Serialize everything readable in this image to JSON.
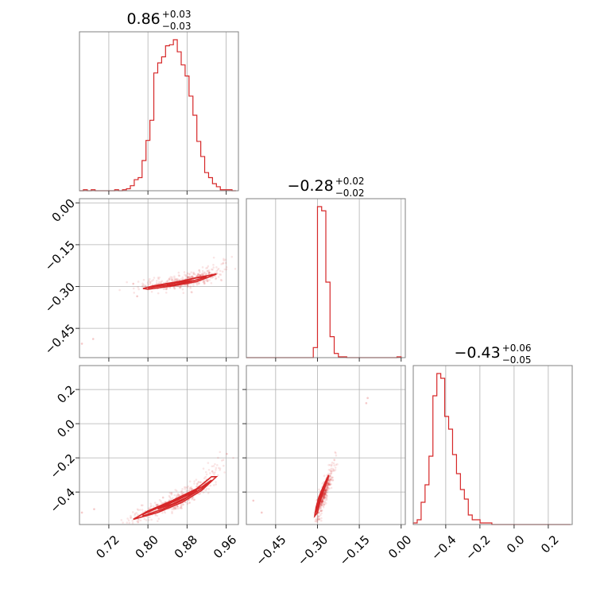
{
  "chart_data": {
    "type": "corner",
    "color": "#d62728",
    "frame_color": "#808080",
    "grid_color": "#b0b0b0",
    "grid": true,
    "parameters": [
      {
        "index": 0,
        "median": "0.86",
        "plus": "+0.03",
        "minus": "−0.03",
        "range": [
          0.66,
          0.985
        ],
        "ticks": [
          0.72,
          0.8,
          0.88,
          0.96
        ],
        "tick_labels": [
          "0.72",
          "0.80",
          "0.88",
          "0.96"
        ]
      },
      {
        "index": 1,
        "median": "−0.28",
        "plus": "+0.02",
        "minus": "−0.02",
        "range": [
          -0.555,
          0.015
        ],
        "ticks": [
          -0.45,
          -0.3,
          -0.15,
          0.0
        ],
        "tick_labels": [
          "−0.45",
          "−0.30",
          "−0.15",
          "0.00"
        ]
      },
      {
        "index": 2,
        "median": "−0.43",
        "plus": "+0.06",
        "minus": "−0.05",
        "range": [
          -0.59,
          0.34
        ],
        "ticks": [
          -0.4,
          -0.2,
          0.0,
          0.2
        ],
        "tick_labels": [
          "−0.4",
          "−0.2",
          "0.0",
          "0.2"
        ]
      }
    ],
    "y_tick_labels_row1": [
      "0.00",
      "−0.15",
      "−0.30",
      "−0.45"
    ],
    "y_tick_labels_row2": [
      "0.2",
      "0.0",
      "−0.2",
      "−0.4"
    ],
    "histograms": [
      {
        "param": 0,
        "bins": [
          0.66,
          0.668,
          0.676,
          0.684,
          0.692,
          0.7,
          0.708,
          0.716,
          0.724,
          0.732,
          0.74,
          0.748,
          0.756,
          0.764,
          0.772,
          0.78,
          0.788,
          0.796,
          0.804,
          0.812,
          0.82,
          0.828,
          0.836,
          0.844,
          0.852,
          0.86,
          0.868,
          0.876,
          0.884,
          0.892,
          0.9,
          0.908,
          0.916,
          0.924,
          0.932,
          0.94,
          0.948,
          0.956,
          0.964,
          0.972,
          0.98
        ],
        "counts": [
          0,
          1,
          0,
          1,
          0,
          0,
          0,
          0,
          0,
          1,
          0,
          1,
          2,
          5,
          11,
          13,
          30,
          50,
          70,
          117,
          127,
          133,
          144,
          145,
          150,
          138,
          125,
          114,
          94,
          75,
          49,
          34,
          18,
          13,
          7,
          4,
          1,
          1,
          1,
          0
        ]
      },
      {
        "param": 1,
        "bins": [
          -0.555,
          -0.54,
          -0.525,
          -0.51,
          -0.495,
          -0.48,
          -0.465,
          -0.45,
          -0.435,
          -0.42,
          -0.405,
          -0.39,
          -0.375,
          -0.36,
          -0.345,
          -0.33,
          -0.315,
          -0.3,
          -0.285,
          -0.27,
          -0.255,
          -0.24,
          -0.225,
          -0.21,
          -0.195,
          -0.18,
          -0.165,
          -0.15,
          -0.135,
          -0.12,
          -0.105,
          -0.09,
          -0.075,
          -0.06,
          -0.045,
          -0.03,
          -0.015,
          0.0
        ],
        "counts": [
          0,
          0,
          0,
          0,
          0,
          0,
          0,
          0,
          0,
          0,
          0,
          0,
          0,
          0,
          0,
          0,
          12,
          180,
          175,
          90,
          25,
          5,
          1,
          1,
          0,
          0,
          0,
          0,
          0,
          0,
          0,
          0,
          0,
          0,
          0,
          0,
          1
        ]
      },
      {
        "param": 2,
        "bins": [
          -0.59,
          -0.567,
          -0.544,
          -0.521,
          -0.498,
          -0.475,
          -0.452,
          -0.429,
          -0.406,
          -0.383,
          -0.36,
          -0.337,
          -0.314,
          -0.291,
          -0.268,
          -0.245,
          -0.222,
          -0.199,
          -0.176,
          -0.153,
          -0.13,
          -0.107,
          -0.084,
          -0.061,
          -0.038,
          -0.015,
          0.008,
          0.031,
          0.054,
          0.077,
          0.1,
          0.123,
          0.146,
          0.169,
          0.192,
          0.215,
          0.238,
          0.261,
          0.284,
          0.307,
          0.33
        ],
        "counts": [
          1,
          3,
          14,
          25,
          43,
          81,
          95,
          92,
          68,
          60,
          44,
          32,
          22,
          16,
          6,
          3,
          3,
          1,
          1,
          1,
          0,
          0,
          0,
          0,
          0,
          0,
          0,
          0,
          0,
          0,
          0,
          0,
          0,
          0,
          0,
          0,
          0,
          0,
          0,
          0
        ]
      }
    ],
    "scatter_panels": [
      {
        "x_param": 0,
        "y_param": 1,
        "trend": [
          [
            0.78,
            -0.302
          ],
          [
            0.82,
            -0.297
          ],
          [
            0.86,
            -0.288
          ],
          [
            0.9,
            -0.272
          ],
          [
            0.93,
            -0.255
          ],
          [
            0.96,
            -0.21
          ]
        ],
        "spread": [
          0.015,
          0.012
        ],
        "outliers": [
          [
            0.665,
            -0.505
          ],
          [
            0.688,
            -0.488
          ],
          [
            0.778,
            -0.335
          ],
          [
            0.77,
            -0.29
          ]
        ],
        "contours": [
          [
            [
              0.82,
              -0.3
            ],
            [
              0.86,
              -0.292
            ],
            [
              0.9,
              -0.276
            ],
            [
              0.92,
              -0.265
            ],
            [
              0.9,
              -0.268
            ],
            [
              0.86,
              -0.285
            ],
            [
              0.82,
              -0.296
            ],
            [
              0.8,
              -0.305
            ],
            [
              0.82,
              -0.3
            ]
          ],
          [
            [
              0.84,
              -0.297
            ],
            [
              0.87,
              -0.288
            ],
            [
              0.89,
              -0.279
            ],
            [
              0.87,
              -0.283
            ],
            [
              0.84,
              -0.292
            ],
            [
              0.84,
              -0.297
            ]
          ],
          [
            [
              0.8,
              -0.31
            ],
            [
              0.85,
              -0.298
            ],
            [
              0.9,
              -0.282
            ],
            [
              0.93,
              -0.262
            ],
            [
              0.94,
              -0.255
            ],
            [
              0.91,
              -0.265
            ],
            [
              0.86,
              -0.283
            ],
            [
              0.81,
              -0.298
            ],
            [
              0.79,
              -0.307
            ],
            [
              0.8,
              -0.31
            ]
          ]
        ]
      },
      {
        "x_param": 0,
        "y_param": 2,
        "trend": [
          [
            0.76,
            -0.57
          ],
          [
            0.8,
            -0.53
          ],
          [
            0.84,
            -0.48
          ],
          [
            0.88,
            -0.42
          ],
          [
            0.92,
            -0.34
          ],
          [
            0.96,
            -0.2
          ]
        ],
        "spread": [
          0.012,
          0.02
        ],
        "outliers": [
          [
            0.665,
            -0.52
          ],
          [
            0.69,
            -0.5
          ]
        ],
        "contours": [
          [
            [
              0.79,
              -0.54
            ],
            [
              0.83,
              -0.5
            ],
            [
              0.87,
              -0.45
            ],
            [
              0.91,
              -0.38
            ],
            [
              0.93,
              -0.33
            ],
            [
              0.91,
              -0.37
            ],
            [
              0.87,
              -0.43
            ],
            [
              0.83,
              -0.48
            ],
            [
              0.79,
              -0.53
            ],
            [
              0.79,
              -0.54
            ]
          ],
          [
            [
              0.82,
              -0.5
            ],
            [
              0.85,
              -0.47
            ],
            [
              0.88,
              -0.43
            ],
            [
              0.9,
              -0.39
            ],
            [
              0.88,
              -0.42
            ],
            [
              0.85,
              -0.46
            ],
            [
              0.82,
              -0.5
            ]
          ],
          [
            [
              0.77,
              -0.56
            ],
            [
              0.82,
              -0.52
            ],
            [
              0.87,
              -0.46
            ],
            [
              0.91,
              -0.39
            ],
            [
              0.94,
              -0.31
            ],
            [
              0.93,
              -0.31
            ],
            [
              0.9,
              -0.38
            ],
            [
              0.85,
              -0.45
            ],
            [
              0.8,
              -0.51
            ],
            [
              0.77,
              -0.56
            ]
          ]
        ]
      },
      {
        "x_param": 1,
        "y_param": 2,
        "trend": [
          [
            -0.3,
            -0.56
          ],
          [
            -0.295,
            -0.5
          ],
          [
            -0.285,
            -0.44
          ],
          [
            -0.27,
            -0.38
          ],
          [
            -0.255,
            -0.31
          ],
          [
            -0.235,
            -0.2
          ]
        ],
        "spread": [
          0.006,
          0.018
        ],
        "outliers": [
          [
            -0.53,
            -0.45
          ],
          [
            -0.5,
            -0.52
          ],
          [
            -0.12,
            0.15
          ],
          [
            -0.125,
            0.12
          ]
        ],
        "contours": [
          [
            [
              -0.305,
              -0.52
            ],
            [
              -0.3,
              -0.48
            ],
            [
              -0.29,
              -0.43
            ],
            [
              -0.275,
              -0.38
            ],
            [
              -0.265,
              -0.33
            ],
            [
              -0.27,
              -0.34
            ],
            [
              -0.285,
              -0.4
            ],
            [
              -0.295,
              -0.45
            ],
            [
              -0.302,
              -0.5
            ],
            [
              -0.305,
              -0.52
            ]
          ],
          [
            [
              -0.3,
              -0.5
            ],
            [
              -0.292,
              -0.46
            ],
            [
              -0.283,
              -0.42
            ],
            [
              -0.278,
              -0.39
            ],
            [
              -0.285,
              -0.42
            ],
            [
              -0.295,
              -0.47
            ],
            [
              -0.3,
              -0.5
            ]
          ],
          [
            [
              -0.31,
              -0.54
            ],
            [
              -0.305,
              -0.49
            ],
            [
              -0.295,
              -0.43
            ],
            [
              -0.28,
              -0.37
            ],
            [
              -0.26,
              -0.3
            ],
            [
              -0.262,
              -0.32
            ],
            [
              -0.28,
              -0.39
            ],
            [
              -0.292,
              -0.46
            ],
            [
              -0.3,
              -0.52
            ],
            [
              -0.31,
              -0.54
            ]
          ]
        ]
      }
    ]
  }
}
